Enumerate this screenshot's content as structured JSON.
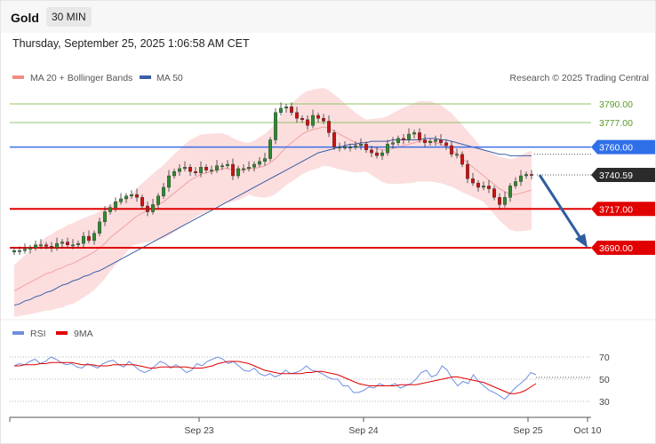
{
  "header": {
    "title": "Gold",
    "interval": "30 MIN",
    "timestamp": "Thursday, September 25, 2025 1:06:58 AM CET"
  },
  "legend": {
    "ma20": "MA 20 + Bollinger Bands",
    "ma50": "MA 50",
    "credit": "Research © 2025 Trading Central",
    "rsi": "RSI",
    "rsi_ma": "9MA"
  },
  "colors": {
    "up": "#2e8b2e",
    "down": "#cc1111",
    "bollinger": "#fbd3d3",
    "ma20": "#f2a0a0",
    "ma50": "#3a5fa8",
    "support": "#e00000",
    "pivot": "#3a6fe8",
    "resistance": "#8fc46a",
    "rsi": "#6f8ee0",
    "rsi_ma": "#e00000",
    "arrow": "#2f5c9e"
  },
  "chart_data": [
    {
      "type": "candlestick",
      "x_ticks": [
        "Sep 23",
        "Sep 24",
        "Sep 25",
        "Oct 10"
      ],
      "price_levels": [
        {
          "label": "3790.00",
          "value": 3790,
          "kind": "resistance"
        },
        {
          "label": "3777.00",
          "value": 3777,
          "kind": "resistance"
        },
        {
          "label": "3760.00",
          "value": 3760,
          "kind": "pivot"
        },
        {
          "label": "3740.59",
          "value": 3740.59,
          "kind": "last"
        },
        {
          "label": "3717.00",
          "value": 3717,
          "kind": "support"
        },
        {
          "label": "3690.00",
          "value": 3690,
          "kind": "support"
        }
      ],
      "close": [
        3688,
        3688,
        3689,
        3690,
        3692,
        3692,
        3691,
        3690,
        3693,
        3694,
        3692,
        3692,
        3693,
        3698,
        3695,
        3700,
        3708,
        3715,
        3718,
        3722,
        3724,
        3726,
        3727,
        3725,
        3719,
        3715,
        3720,
        3726,
        3732,
        3740,
        3743,
        3745,
        3746,
        3743,
        3742,
        3746,
        3744,
        3744,
        3747,
        3747,
        3748,
        3740,
        3745,
        3745,
        3746,
        3748,
        3750,
        3752,
        3765,
        3784,
        3787,
        3788,
        3784,
        3780,
        3779,
        3775,
        3782,
        3780,
        3778,
        3770,
        3760,
        3760,
        3760,
        3760,
        3761,
        3762,
        3758,
        3756,
        3754,
        3756,
        3762,
        3763,
        3766,
        3765,
        3769,
        3770,
        3765,
        3763,
        3764,
        3765,
        3763,
        3761,
        3755,
        3755,
        3748,
        3738,
        3735,
        3732,
        3733,
        3731,
        3725,
        3720,
        3725,
        3733,
        3736,
        3740,
        3741,
        3740.59
      ],
      "ma20_series": [
        3660,
        3662,
        3664,
        3666,
        3668,
        3670,
        3672,
        3673,
        3675,
        3676,
        3678,
        3679,
        3681,
        3683,
        3685,
        3687,
        3690,
        3693,
        3697,
        3700,
        3703,
        3706,
        3709,
        3712,
        3714,
        3716,
        3718,
        3720,
        3722,
        3725,
        3728,
        3731,
        3734,
        3737,
        3739,
        3741,
        3742,
        3743,
        3744,
        3745,
        3745,
        3744,
        3744,
        3744,
        3745,
        3745,
        3746,
        3747,
        3749,
        3752,
        3756,
        3760,
        3763,
        3766,
        3769,
        3771,
        3772,
        3773,
        3774,
        3773,
        3771,
        3769,
        3767,
        3765,
        3763,
        3762,
        3761,
        3760,
        3759,
        3758,
        3758,
        3759,
        3760,
        3761,
        3762,
        3763,
        3764,
        3764,
        3764,
        3763,
        3762,
        3760,
        3758,
        3755,
        3752,
        3749,
        3746,
        3743,
        3740,
        3737,
        3734,
        3731,
        3729,
        3727,
        3727,
        3728,
        3729,
        3730
      ],
      "ma50_series": [
        3650,
        3651,
        3653,
        3654,
        3656,
        3657,
        3659,
        3660,
        3662,
        3664,
        3665,
        3667,
        3668,
        3670,
        3671,
        3673,
        3674,
        3676,
        3678,
        3680,
        3682,
        3684,
        3686,
        3688,
        3690,
        3692,
        3694,
        3696,
        3698,
        3700,
        3702,
        3704,
        3706,
        3708,
        3710,
        3712,
        3714,
        3716,
        3718,
        3720,
        3722,
        3724,
        3726,
        3728,
        3730,
        3732,
        3734,
        3736,
        3738,
        3740,
        3742,
        3744,
        3746,
        3748,
        3750,
        3752,
        3754,
        3756,
        3757,
        3758,
        3759,
        3760,
        3761,
        3762,
        3762,
        3763,
        3763,
        3764,
        3764,
        3764,
        3764,
        3765,
        3765,
        3765,
        3765,
        3765,
        3765,
        3766,
        3766,
        3766,
        3765,
        3765,
        3764,
        3763,
        3762,
        3761,
        3760,
        3759,
        3758,
        3757,
        3756,
        3755,
        3755,
        3754,
        3754,
        3754,
        3754,
        3754
      ]
    },
    {
      "type": "line",
      "levels": [
        70,
        50,
        30
      ],
      "rsi_series": [
        62,
        64,
        63,
        66,
        68,
        64,
        66,
        70,
        68,
        65,
        63,
        64,
        61,
        60,
        64,
        62,
        60,
        64,
        66,
        67,
        63,
        61,
        66,
        62,
        58,
        56,
        58,
        62,
        66,
        64,
        60,
        63,
        60,
        56,
        58,
        64,
        62,
        66,
        68,
        70,
        68,
        64,
        66,
        62,
        58,
        57,
        60,
        55,
        53,
        55,
        52,
        54,
        58,
        55,
        56,
        58,
        62,
        58,
        57,
        55,
        52,
        50,
        50,
        44,
        44,
        38,
        38,
        40,
        43,
        42,
        46,
        44,
        44,
        46,
        42,
        44,
        46,
        50,
        56,
        58,
        52,
        54,
        62,
        58,
        50,
        44,
        48,
        46,
        54,
        48,
        44,
        40,
        38,
        35,
        32,
        37,
        42,
        46,
        50,
        56,
        54
      ],
      "rsi_ma_series": [
        62,
        62,
        63,
        63,
        63,
        64,
        64,
        65,
        65,
        65,
        65,
        65,
        64,
        63,
        63,
        63,
        62,
        62,
        62,
        63,
        63,
        63,
        63,
        63,
        62,
        61,
        60,
        60,
        61,
        61,
        61,
        61,
        61,
        61,
        60,
        60,
        60,
        61,
        62,
        64,
        65,
        66,
        66,
        66,
        65,
        64,
        62,
        60,
        58,
        57,
        56,
        55,
        55,
        55,
        55,
        55,
        56,
        56,
        57,
        57,
        56,
        55,
        54,
        52,
        50,
        48,
        46,
        45,
        44,
        44,
        44,
        44,
        44,
        44,
        45,
        45,
        45,
        45,
        46,
        47,
        48,
        49,
        50,
        51,
        52,
        52,
        51,
        50,
        49,
        48,
        47,
        45,
        43,
        41,
        39,
        37,
        37,
        38,
        40,
        43,
        46
      ]
    }
  ]
}
